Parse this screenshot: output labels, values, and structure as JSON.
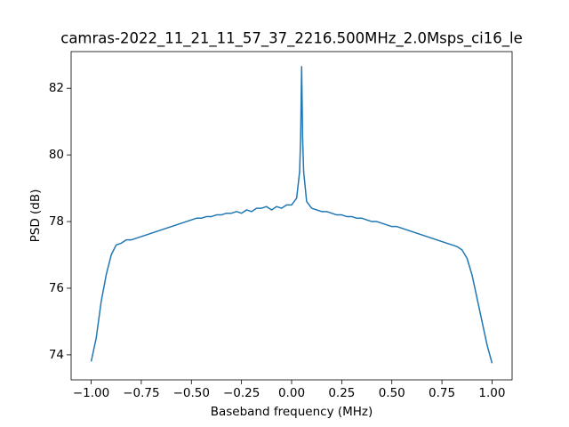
{
  "chart_data": {
    "type": "line",
    "title": "camras-2022_11_21_11_57_37_2216.500MHz_2.0Msps_ci16_le",
    "xlabel": "Baseband frequency (MHz)",
    "ylabel": "PSD (dB)",
    "color": "#1f77b4",
    "x": [
      -1.0,
      -0.975,
      -0.95,
      -0.925,
      -0.9,
      -0.875,
      -0.85,
      -0.825,
      -0.8,
      -0.775,
      -0.75,
      -0.725,
      -0.7,
      -0.675,
      -0.65,
      -0.625,
      -0.6,
      -0.575,
      -0.55,
      -0.525,
      -0.5,
      -0.475,
      -0.45,
      -0.425,
      -0.4,
      -0.375,
      -0.35,
      -0.325,
      -0.3,
      -0.275,
      -0.25,
      -0.225,
      -0.2,
      -0.175,
      -0.15,
      -0.125,
      -0.1,
      -0.075,
      -0.05,
      -0.025,
      0.0,
      0.025,
      0.04,
      0.045,
      0.05,
      0.055,
      0.06,
      0.075,
      0.1,
      0.125,
      0.15,
      0.175,
      0.2,
      0.225,
      0.25,
      0.275,
      0.3,
      0.325,
      0.35,
      0.375,
      0.4,
      0.425,
      0.45,
      0.475,
      0.5,
      0.525,
      0.55,
      0.575,
      0.6,
      0.625,
      0.65,
      0.675,
      0.7,
      0.725,
      0.75,
      0.775,
      0.8,
      0.825,
      0.85,
      0.875,
      0.9,
      0.925,
      0.95,
      0.975,
      1.0
    ],
    "y": [
      73.8,
      74.5,
      75.6,
      76.4,
      77.0,
      77.3,
      77.35,
      77.45,
      77.45,
      77.5,
      77.55,
      77.6,
      77.65,
      77.7,
      77.75,
      77.8,
      77.85,
      77.9,
      77.95,
      78.0,
      78.05,
      78.1,
      78.1,
      78.15,
      78.15,
      78.2,
      78.2,
      78.25,
      78.25,
      78.3,
      78.25,
      78.35,
      78.3,
      78.4,
      78.4,
      78.45,
      78.35,
      78.45,
      78.4,
      78.5,
      78.5,
      78.7,
      79.5,
      80.5,
      82.65,
      80.5,
      79.5,
      78.6,
      78.4,
      78.35,
      78.3,
      78.3,
      78.25,
      78.2,
      78.2,
      78.15,
      78.15,
      78.1,
      78.1,
      78.05,
      78.0,
      78.0,
      77.95,
      77.9,
      77.85,
      77.85,
      77.8,
      77.75,
      77.7,
      77.65,
      77.6,
      77.55,
      77.5,
      77.45,
      77.4,
      77.35,
      77.3,
      77.25,
      77.15,
      76.9,
      76.4,
      75.7,
      75.0,
      74.3,
      73.75
    ],
    "xlim": [
      -1.1,
      1.1
    ],
    "ylim": [
      73.25,
      83.1
    ],
    "xticks": [
      {
        "value": -1.0,
        "label": "−1.00"
      },
      {
        "value": -0.75,
        "label": "−0.75"
      },
      {
        "value": -0.5,
        "label": "−0.50"
      },
      {
        "value": -0.25,
        "label": "−0.25"
      },
      {
        "value": 0.0,
        "label": "0.00"
      },
      {
        "value": 0.25,
        "label": "0.25"
      },
      {
        "value": 0.5,
        "label": "0.50"
      },
      {
        "value": 0.75,
        "label": "0.75"
      },
      {
        "value": 1.0,
        "label": "1.00"
      }
    ],
    "yticks": [
      74,
      76,
      78,
      80,
      82
    ]
  }
}
